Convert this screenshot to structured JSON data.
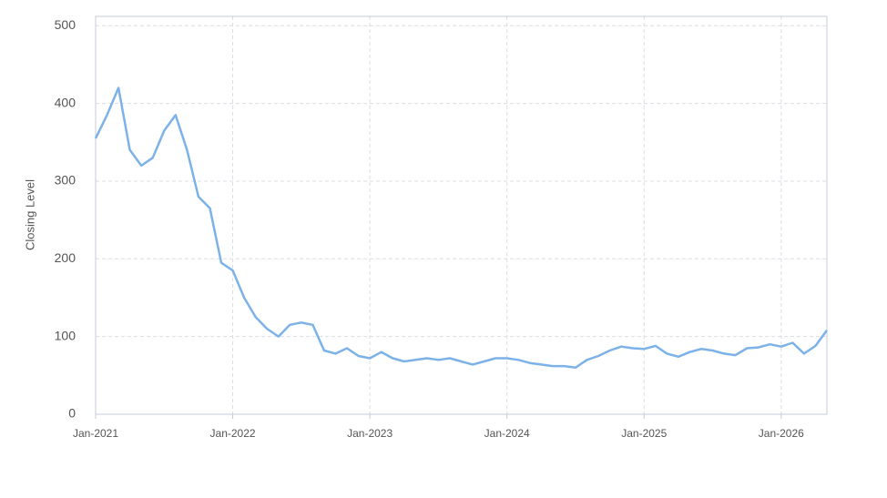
{
  "chart_data": {
    "type": "line",
    "y_label": "Closing Level",
    "x": [
      "2021-01",
      "2021-02",
      "2021-03",
      "2021-04",
      "2021-05",
      "2021-06",
      "2021-07",
      "2021-08",
      "2021-09",
      "2021-10",
      "2021-11",
      "2021-12",
      "2022-01",
      "2022-02",
      "2022-03",
      "2022-04",
      "2022-05",
      "2022-06",
      "2022-07",
      "2022-08",
      "2022-09",
      "2022-10",
      "2022-11",
      "2022-12",
      "2023-01",
      "2023-02",
      "2023-03",
      "2023-04",
      "2023-05",
      "2023-06",
      "2023-07",
      "2023-08",
      "2023-09",
      "2023-10",
      "2023-11",
      "2023-12",
      "2024-01",
      "2024-02",
      "2024-03",
      "2024-04",
      "2024-05",
      "2024-06",
      "2024-07",
      "2024-08",
      "2024-09",
      "2024-10",
      "2024-11",
      "2024-12",
      "2025-01",
      "2025-02",
      "2025-03",
      "2025-04",
      "2025-05",
      "2025-06",
      "2025-07",
      "2025-08",
      "2025-09",
      "2025-10",
      "2025-11",
      "2025-12",
      "2026-01",
      "2026-02",
      "2026-03",
      "2026-04",
      "2026-05"
    ],
    "series": [
      {
        "name": "Closing Level",
        "color": "#7cb2e8",
        "values": [
          355,
          385,
          420,
          340,
          320,
          330,
          365,
          385,
          340,
          280,
          265,
          195,
          185,
          150,
          125,
          110,
          100,
          115,
          118,
          115,
          82,
          78,
          85,
          75,
          72,
          80,
          72,
          68,
          70,
          72,
          70,
          72,
          68,
          64,
          68,
          72,
          72,
          70,
          66,
          64,
          62,
          62,
          60,
          70,
          75,
          82,
          87,
          85,
          84,
          88,
          78,
          74,
          80,
          84,
          82,
          78,
          76,
          85,
          86,
          90,
          87,
          92,
          78,
          88,
          108
        ]
      }
    ],
    "xlim": [
      "2021-01",
      "2026-05"
    ],
    "xticks": [
      {
        "value": "2021-01",
        "label": "Jan-2021"
      },
      {
        "value": "2022-01",
        "label": "Jan-2022"
      },
      {
        "value": "2023-01",
        "label": "Jan-2023"
      },
      {
        "value": "2024-01",
        "label": "Jan-2024"
      },
      {
        "value": "2025-01",
        "label": "Jan-2025"
      },
      {
        "value": "2026-01",
        "label": "Jan-2026"
      }
    ],
    "ylim": [
      0,
      512
    ],
    "yticks": [
      0,
      100,
      200,
      300,
      400,
      500
    ],
    "grid": true
  }
}
